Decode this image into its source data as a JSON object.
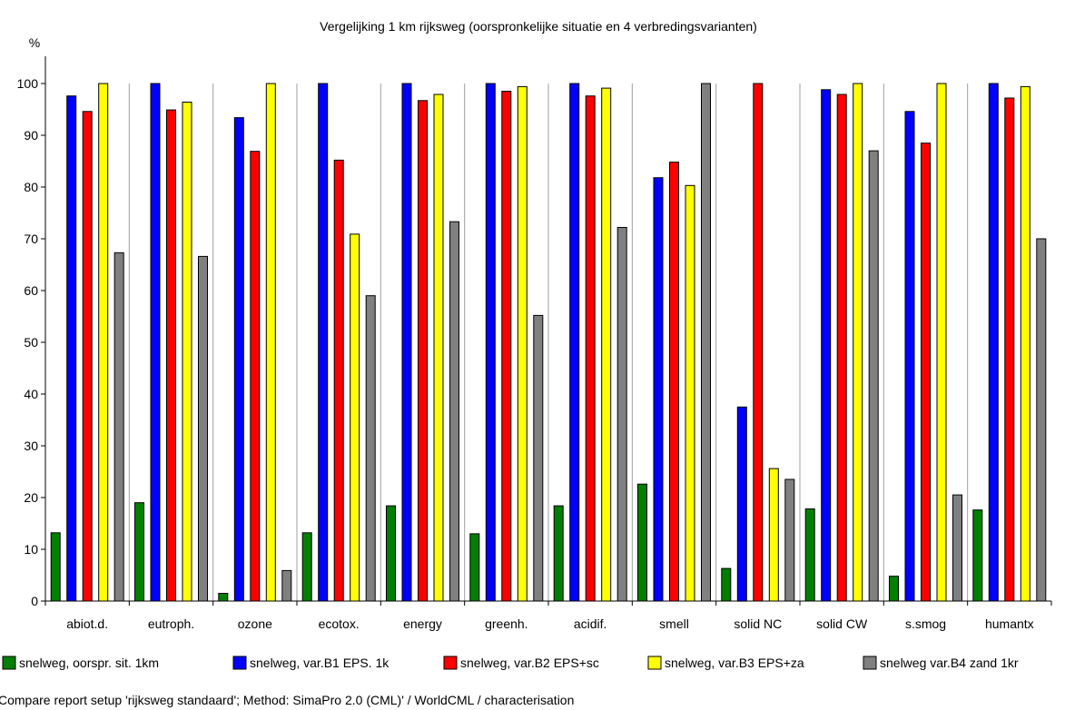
{
  "chart_data": {
    "type": "bar",
    "title": "Vergelijking 1 km rijksweg (oorspronkelijke situatie en 4 verbredingsvarianten)",
    "ylabel": "%",
    "ylim": [
      0,
      105
    ],
    "yticks": [
      0,
      10,
      20,
      30,
      40,
      50,
      60,
      70,
      80,
      90,
      100
    ],
    "grid": "vertical separators between categories",
    "legend_position": "bottom",
    "categories": [
      "abiot.d.",
      "eutroph.",
      "ozone",
      "ecotox.",
      "energy",
      "greenh.",
      "acidif.",
      "smell",
      "solid NC",
      "solid CW",
      "s.smog",
      "humantx"
    ],
    "series": [
      {
        "name": "snelweg, oorspr. sit. 1km",
        "color": "#007f00",
        "values": [
          13.2,
          19.0,
          1.5,
          13.2,
          18.4,
          13.0,
          18.4,
          22.6,
          6.3,
          17.8,
          4.8,
          17.6
        ]
      },
      {
        "name": "snelweg, var.B1 EPS. 1k",
        "color": "#0000ff",
        "values": [
          97.6,
          100,
          93.4,
          100,
          100,
          100,
          100,
          81.8,
          37.5,
          98.8,
          94.6,
          100
        ]
      },
      {
        "name": "snelweg, var.B2 EPS+sc",
        "color": "#ff0000",
        "values": [
          94.6,
          94.9,
          86.9,
          85.2,
          96.7,
          98.5,
          97.6,
          84.8,
          100,
          97.9,
          88.5,
          97.2
        ]
      },
      {
        "name": "snelweg, var.B3 EPS+za",
        "color": "#ffff00",
        "values": [
          100,
          96.4,
          100,
          70.9,
          97.9,
          99.4,
          99.1,
          80.3,
          25.6,
          100,
          100,
          99.4
        ]
      },
      {
        "name": "snelweg var.B4 zand 1kr",
        "color": "#808080",
        "values": [
          67.3,
          66.6,
          5.9,
          59.0,
          73.3,
          55.2,
          72.2,
          100,
          23.5,
          87.0,
          20.5,
          70.0
        ]
      }
    ]
  },
  "footer": "Compare report setup 'rijksweg standaard';  Method: SimaPro 2.0 (CML)' /  WorldCML / characterisation"
}
